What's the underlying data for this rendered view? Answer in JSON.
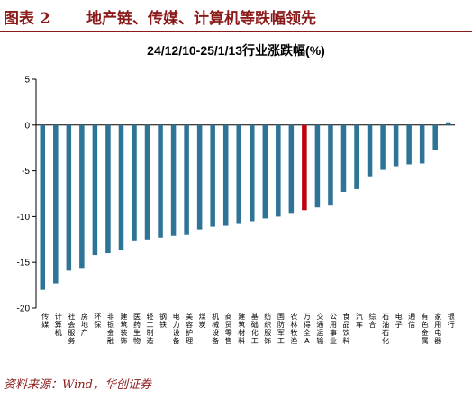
{
  "header": {
    "figure_label": "图表 2",
    "figure_title": "地产链、传媒、计算机等跌幅领先"
  },
  "source": "资料来源：Wind，华创证券",
  "chart_data": {
    "type": "bar",
    "title": "24/12/10-25/1/13行业涨跌幅(%)",
    "xlabel": "",
    "ylabel": "",
    "ylim": [
      -20,
      5
    ],
    "yticks": [
      5,
      0,
      -5,
      -10,
      -15,
      -20
    ],
    "grid": false,
    "legend": "none",
    "categories": [
      "传媒",
      "计算机",
      "社会服务",
      "房地产",
      "环保",
      "非银金融",
      "建筑装饰",
      "医药生物",
      "轻工制造",
      "钢铁",
      "电力设备",
      "美容护理",
      "煤炭",
      "机械设备",
      "商贸零售",
      "建筑材料",
      "基础化工",
      "纺织服饰",
      "国防军工",
      "农林牧渔",
      "万得全A",
      "交通运输",
      "公用事业",
      "食品饮料",
      "汽车",
      "综合",
      "石油石化",
      "电子",
      "通信",
      "有色金属",
      "家用电器",
      "银行"
    ],
    "values": [
      -18.0,
      -17.3,
      -15.9,
      -15.7,
      -14.2,
      -14.0,
      -13.7,
      -12.6,
      -12.5,
      -12.3,
      -12.1,
      -12.0,
      -11.4,
      -11.1,
      -11.0,
      -10.8,
      -10.5,
      -10.2,
      -10.0,
      -9.6,
      -9.3,
      -9.0,
      -8.8,
      -7.3,
      -7.0,
      -5.6,
      -4.9,
      -4.5,
      -4.3,
      -4.2,
      -2.7,
      0.3
    ],
    "highlight_category": "万得全A",
    "colors": {
      "bar": "#2e7497",
      "highlight": "#c0000b",
      "axis": "#000000",
      "accent": "#8b1a1a"
    }
  }
}
